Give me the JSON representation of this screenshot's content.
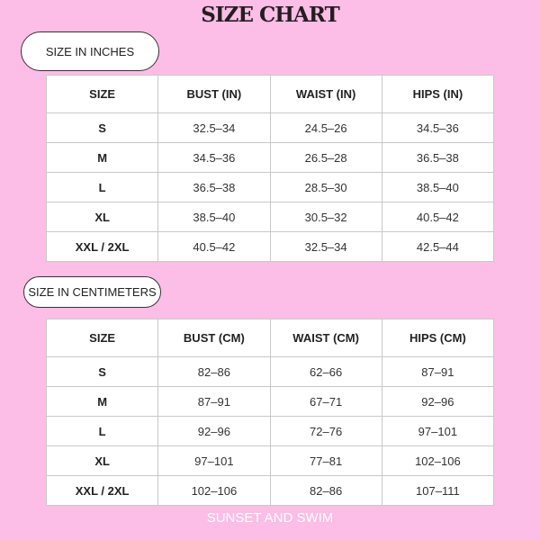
{
  "title": "SIZE CHART",
  "inches": {
    "label": "SIZE IN INCHES",
    "headers": [
      "SIZE",
      "BUST (IN)",
      "WAIST (IN)",
      "HIPS (IN)"
    ],
    "rows": [
      [
        "S",
        "32.5–34",
        "24.5–26",
        "34.5–36"
      ],
      [
        "M",
        "34.5–36",
        "26.5–28",
        "36.5–38"
      ],
      [
        "L",
        "36.5–38",
        "28.5–30",
        "38.5–40"
      ],
      [
        "XL",
        "38.5–40",
        "30.5–32",
        "40.5–42"
      ],
      [
        "XXL / 2XL",
        "40.5–42",
        "32.5–34",
        "42.5–44"
      ]
    ]
  },
  "centimeters": {
    "label": "SIZE IN CENTIMETERS",
    "headers": [
      "SIZE",
      "BUST (CM)",
      "WAIST (CM)",
      "HIPS (CM)"
    ],
    "rows": [
      [
        "S",
        "82–86",
        "62–66",
        "87–91"
      ],
      [
        "M",
        "87–91",
        "67–71",
        "92–96"
      ],
      [
        "L",
        "92–96",
        "72–76",
        "97–101"
      ],
      [
        "XL",
        "97–101",
        "77–81",
        "102–106"
      ],
      [
        "XXL / 2XL",
        "102–106",
        "82–86",
        "107–111"
      ]
    ]
  },
  "brand": "SUNSET AND SWIM"
}
